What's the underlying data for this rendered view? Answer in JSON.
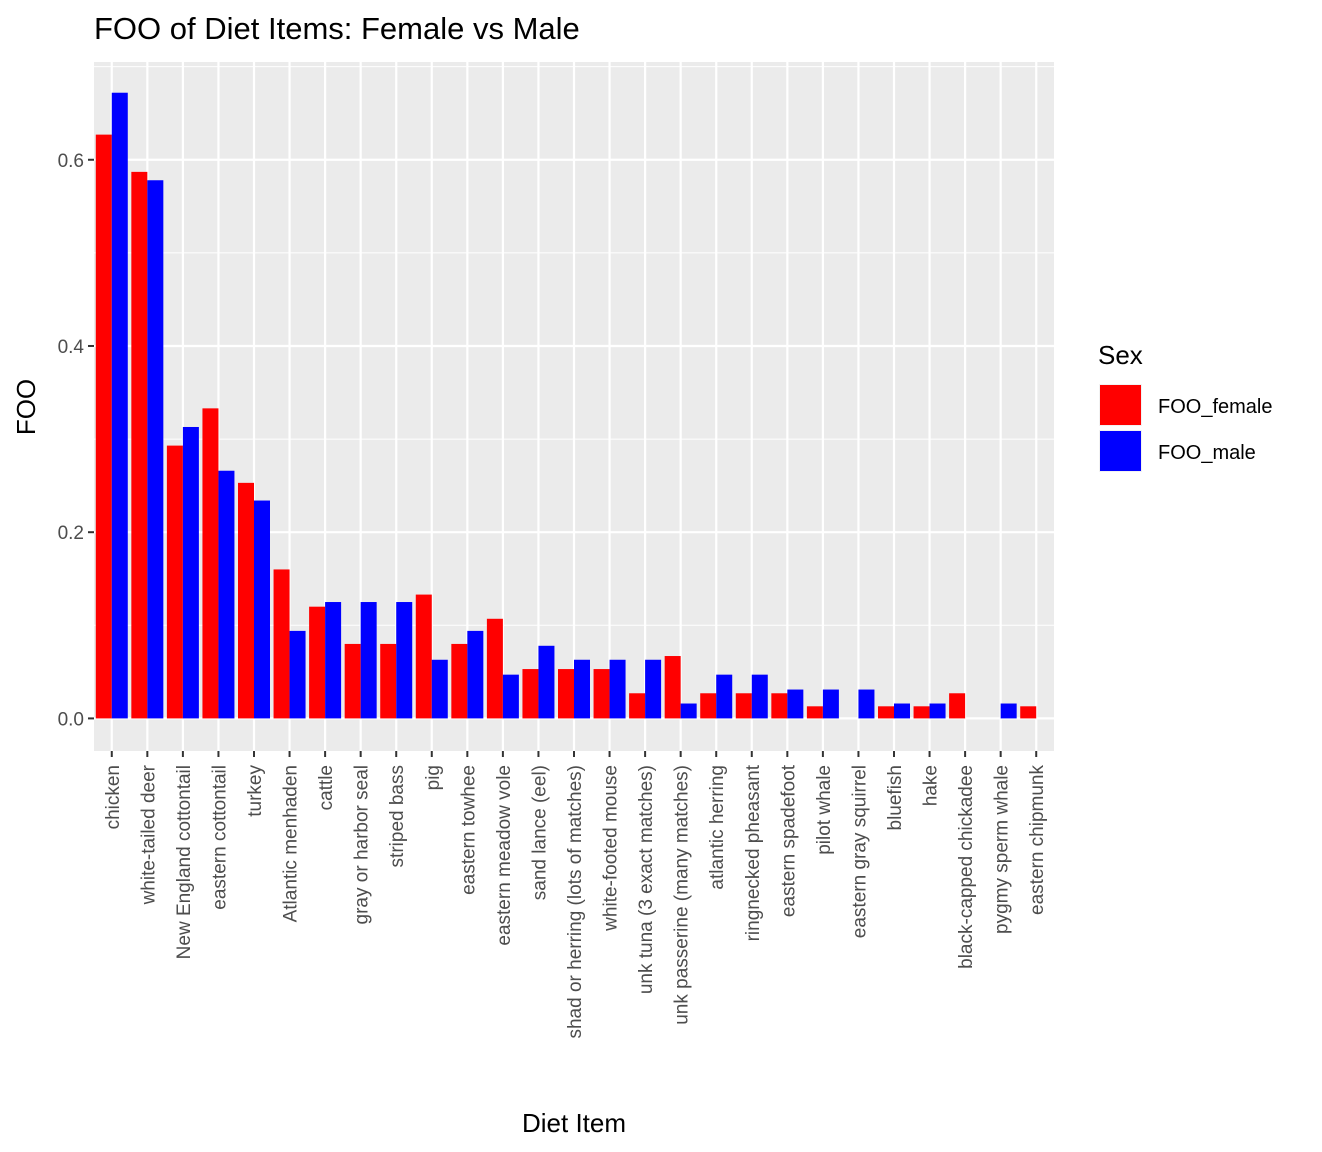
{
  "chart_data": {
    "type": "bar",
    "title": "FOO of Diet Items: Female vs Male",
    "xlabel": "Diet Item",
    "ylabel": "FOO",
    "ylim": [
      -0.035,
      0.705
    ],
    "yticks": [
      0.0,
      0.2,
      0.4,
      0.6
    ],
    "yticklabels": [
      "0.0",
      "0.2",
      "0.4",
      "0.6"
    ],
    "grid": true,
    "legend": {
      "title": "Sex",
      "position": "right"
    },
    "categories": [
      "chicken",
      "white-tailed deer",
      "New England cottontail",
      "eastern cottontail",
      "turkey",
      "Atlantic menhaden",
      "cattle",
      "gray or harbor seal",
      "striped bass",
      "pig",
      "eastern towhee",
      "eastern meadow vole",
      "sand lance (eel)",
      "shad or herring (lots of matches)",
      "white-footed mouse",
      "unk tuna (3 exact matches)",
      "unk passerine (many matches)",
      "atlantic herring",
      "ringnecked pheasant",
      "eastern spadefoot",
      "pilot whale",
      "eastern gray squirrel",
      "bluefish",
      "hake",
      "black-capped chickadee",
      "pygmy sperm whale",
      "eastern chipmunk"
    ],
    "series": [
      {
        "name": "FOO_female",
        "color": "#ff0000",
        "values": [
          0.627,
          0.587,
          0.293,
          0.333,
          0.253,
          0.16,
          0.12,
          0.08,
          0.08,
          0.133,
          0.08,
          0.107,
          0.053,
          0.053,
          0.053,
          0.027,
          0.067,
          0.027,
          0.027,
          0.027,
          0.013,
          null,
          0.013,
          0.013,
          0.027,
          null,
          0.013
        ]
      },
      {
        "name": "FOO_male",
        "color": "#0000ff",
        "values": [
          0.672,
          0.578,
          0.313,
          0.266,
          0.234,
          0.094,
          0.125,
          0.125,
          0.125,
          0.063,
          0.094,
          0.047,
          0.078,
          0.063,
          0.063,
          0.063,
          0.016,
          0.047,
          0.047,
          0.031,
          0.031,
          0.031,
          0.016,
          0.016,
          null,
          0.016,
          null
        ]
      }
    ]
  }
}
